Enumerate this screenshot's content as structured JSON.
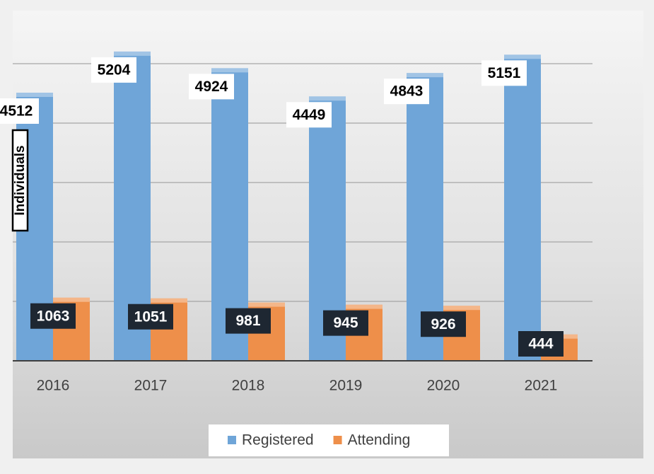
{
  "chart_data": {
    "type": "bar",
    "y_axis_label": "Individuals",
    "categories": [
      "2016",
      "2017",
      "2018",
      "2019",
      "2020",
      "2021"
    ],
    "series": [
      {
        "name": "Registered",
        "color": "#6fa5d8",
        "values": [
          4512,
          5204,
          4924,
          4449,
          4843,
          5151
        ]
      },
      {
        "name": "Attending",
        "color": "#ee8f4a",
        "values": [
          1063,
          1051,
          981,
          945,
          926,
          444
        ]
      }
    ],
    "ylim": [
      0,
      6000
    ],
    "yticks": [
      0,
      1000,
      2000,
      3000,
      4000,
      5000
    ],
    "grid": true,
    "legend": "bottom"
  }
}
